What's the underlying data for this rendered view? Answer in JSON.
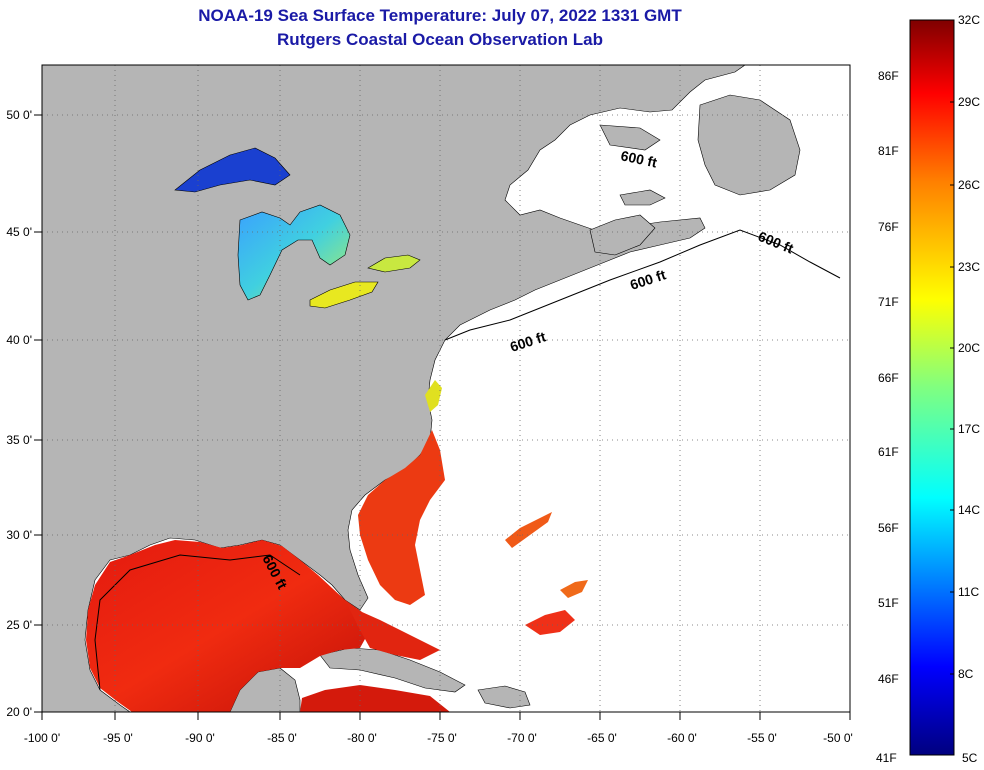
{
  "title_line1": "NOAA-19 Sea Surface Temperature:  July 07, 2022 1331 GMT",
  "title_line2": "Rutgers Coastal Ocean Observation Lab",
  "lon_labels": [
    "-100 0'",
    "-95 0'",
    "-90 0'",
    "-85 0'",
    "-80 0'",
    "-75 0'",
    "-70 0'",
    "-65 0'",
    "-60 0'",
    "-55 0'",
    "-50 0'"
  ],
  "lat_labels": [
    "50 0'",
    "45 0'",
    "40 0'",
    "35 0'",
    "30 0'",
    "25 0'",
    "20 0'"
  ],
  "depth_contour_labels": [
    "600 ft",
    "600 ft",
    "600 ft",
    "600 ft",
    "600 ft"
  ],
  "colorbar": {
    "celsius_labels": [
      "32C",
      "29C",
      "26C",
      "23C",
      "20C",
      "17C",
      "14C",
      "11C",
      "8C",
      "5C"
    ],
    "fahrenheit_labels": [
      "86F",
      "81F",
      "76F",
      "71F",
      "66F",
      "61F",
      "56F",
      "51F",
      "46F",
      "41F"
    ],
    "colors": [
      "#00007f",
      "#0000ff",
      "#0080ff",
      "#00ffff",
      "#80ff80",
      "#ffff00",
      "#ff8000",
      "#ff0000",
      "#7f0000"
    ]
  },
  "colors": {
    "land": "#b5b5b5",
    "ocean_no_data": "#ffffff",
    "title": "#1a1aa6"
  }
}
